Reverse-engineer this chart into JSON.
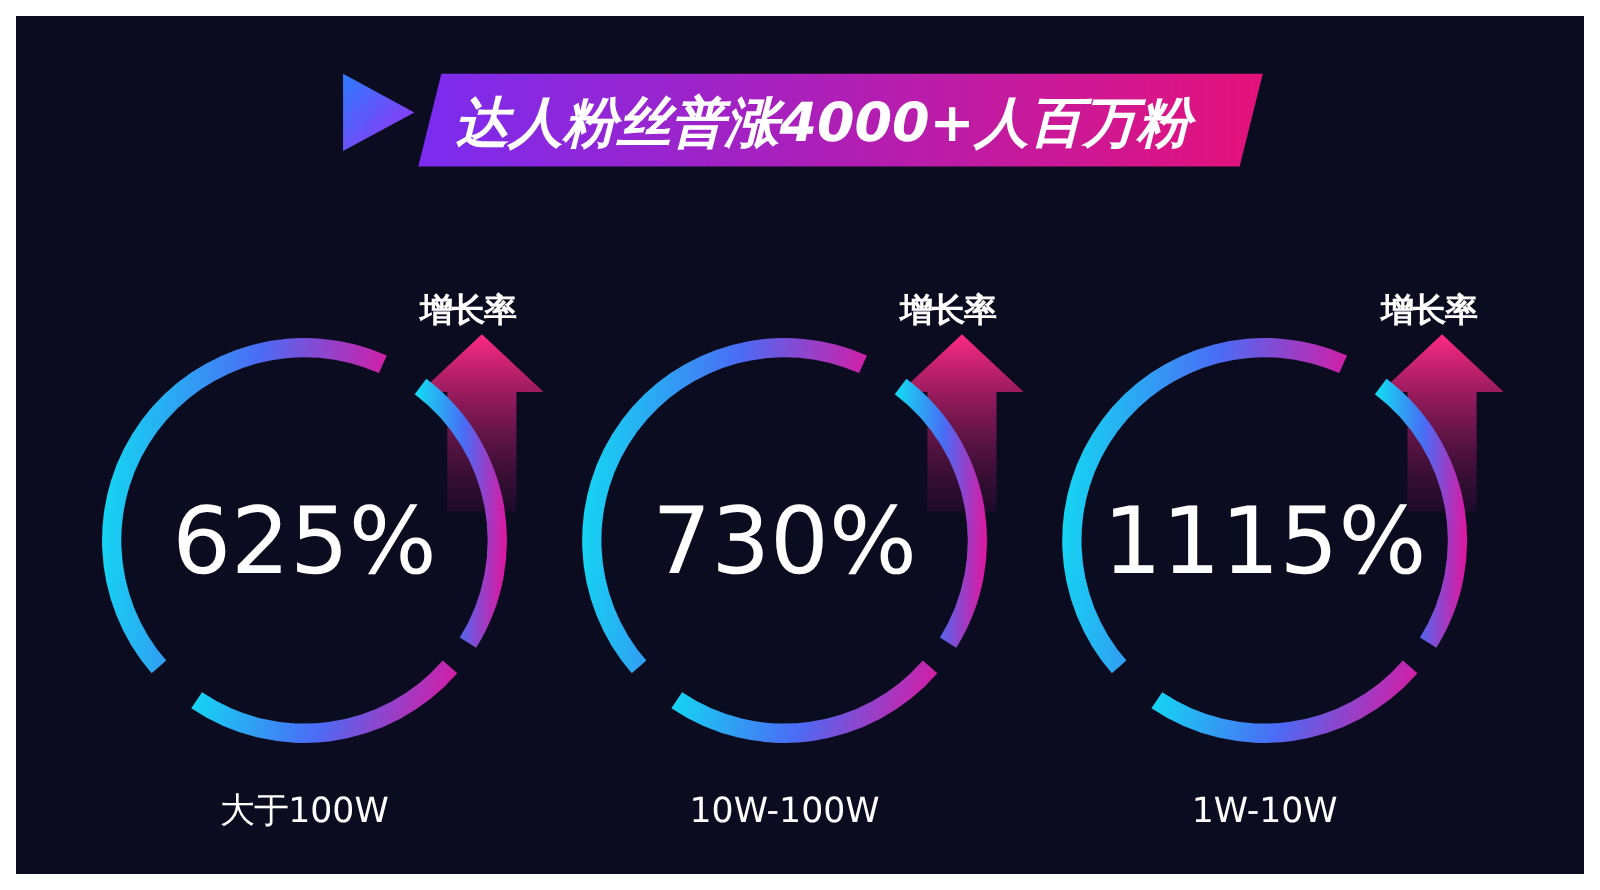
{
  "chart_data": {
    "type": "other",
    "title": "达人粉丝普涨4000+人百万粉",
    "ylabel": "增长率",
    "categories": [
      "大于100W",
      "10W-100W",
      "1W-10W"
    ],
    "values": [
      625,
      730,
      1115
    ],
    "value_labels": [
      "625%",
      "730%",
      "1115%"
    ]
  }
}
